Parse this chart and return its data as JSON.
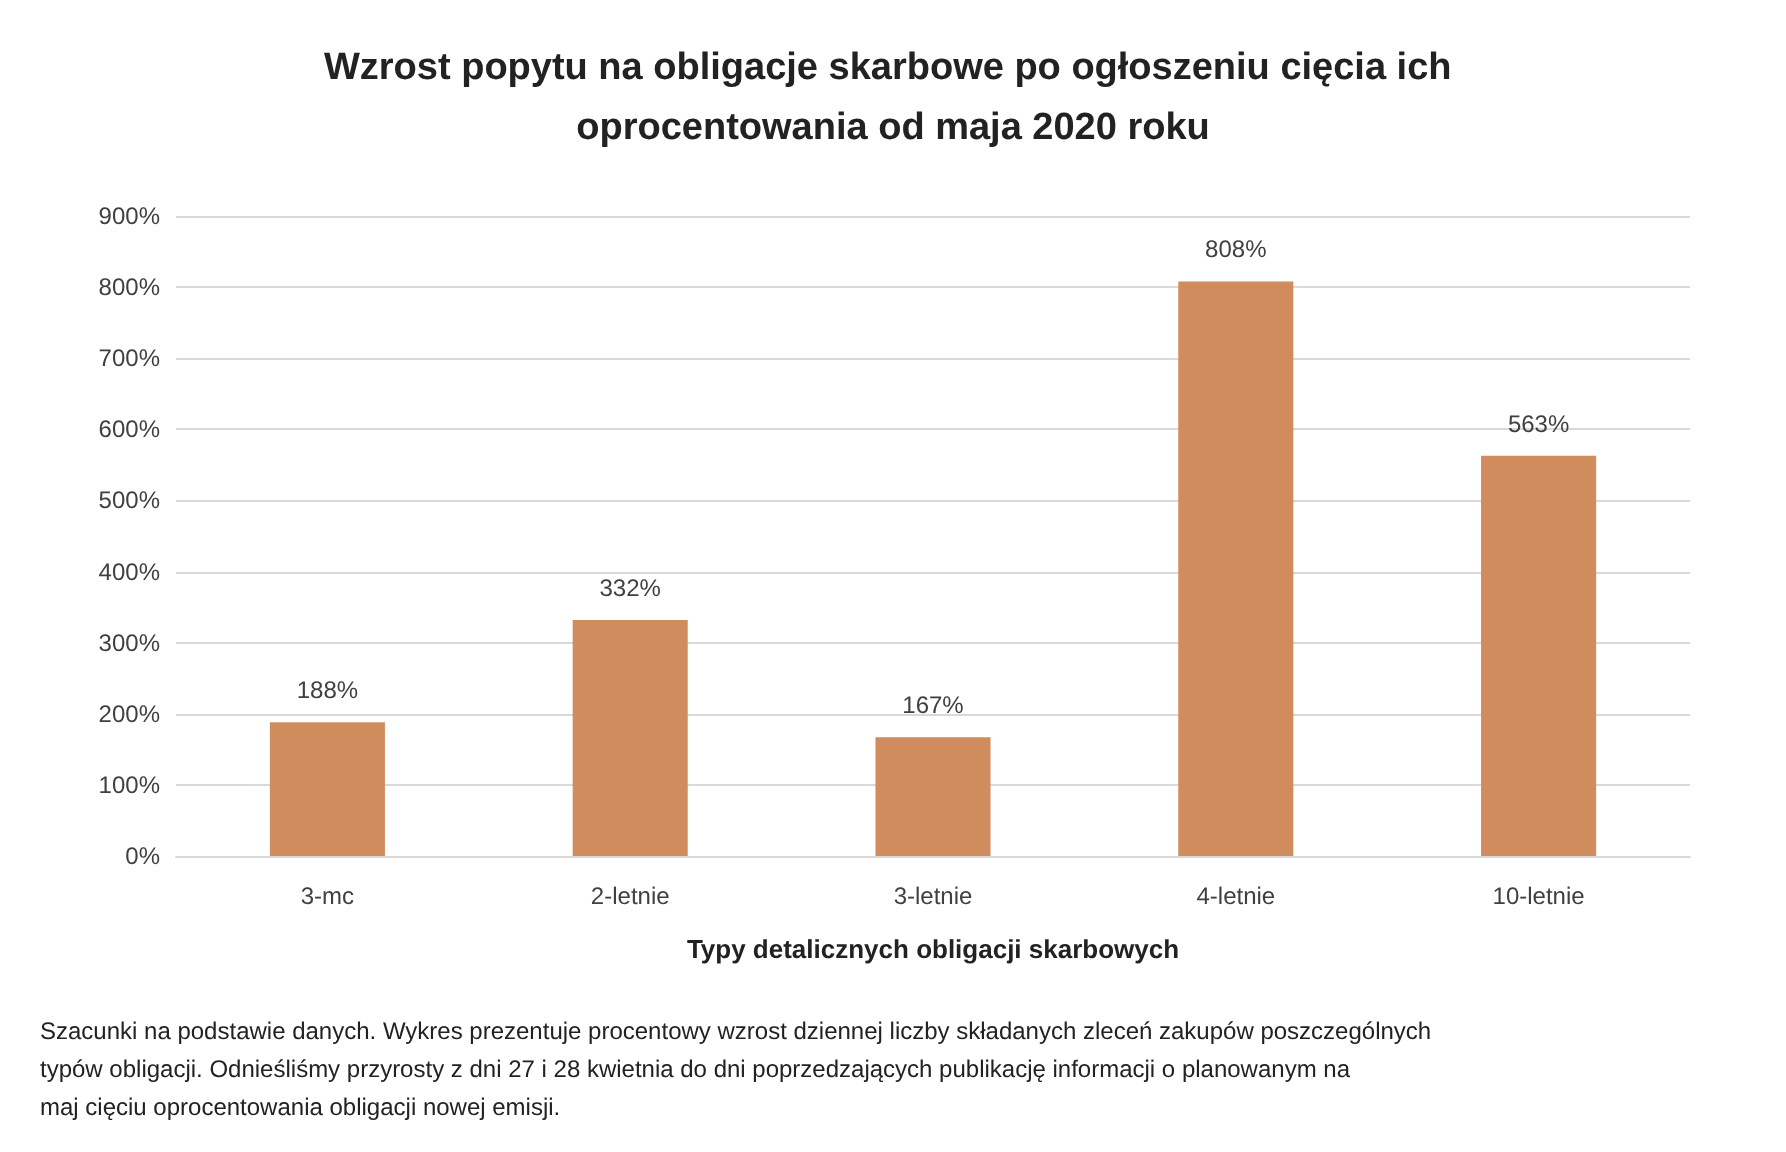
{
  "chart_data": {
    "type": "bar",
    "title": "Wzrost popytu na obligacje skarbowe po ogłoszeniu cięcia ich oprocentowania od maja 2020 roku",
    "xlabel": "Typy detalicznych obligacji skarbowych",
    "categories": [
      "3-mc",
      "2-letnie",
      "3-letnie",
      "4-letnie",
      "10-letnie"
    ],
    "values": [
      188,
      332,
      167,
      808,
      563
    ],
    "value_labels": [
      "188%",
      "332%",
      "167%",
      "808%",
      "563%"
    ],
    "color": "#d08c5c",
    "ylim": [
      0,
      900
    ],
    "yticks": [
      {
        "value": 0,
        "label": "0%"
      },
      {
        "value": 100,
        "label": "100%"
      },
      {
        "value": 200,
        "label": "200%"
      },
      {
        "value": 300,
        "label": "300%"
      },
      {
        "value": 400,
        "label": "400%"
      },
      {
        "value": 500,
        "label": "500%"
      },
      {
        "value": 600,
        "label": "600%"
      },
      {
        "value": 700,
        "label": "700%"
      },
      {
        "value": 800,
        "label": "800%"
      },
      {
        "value": 900,
        "label": "900%"
      }
    ],
    "grid": "y",
    "annotations": [
      "Szacunki na podstawie danych. Wykres prezentuje procentowy wzrost dziennej liczby składanych zleceń zakupów poszczególnych typów obligacji. Odnieśliśmy przyrosty z dni 27 i 28 kwietnia do dni poprzedzających publikację informacji o planowanym na maj cięciu oprocentowania obligacji nowej emisji."
    ]
  }
}
